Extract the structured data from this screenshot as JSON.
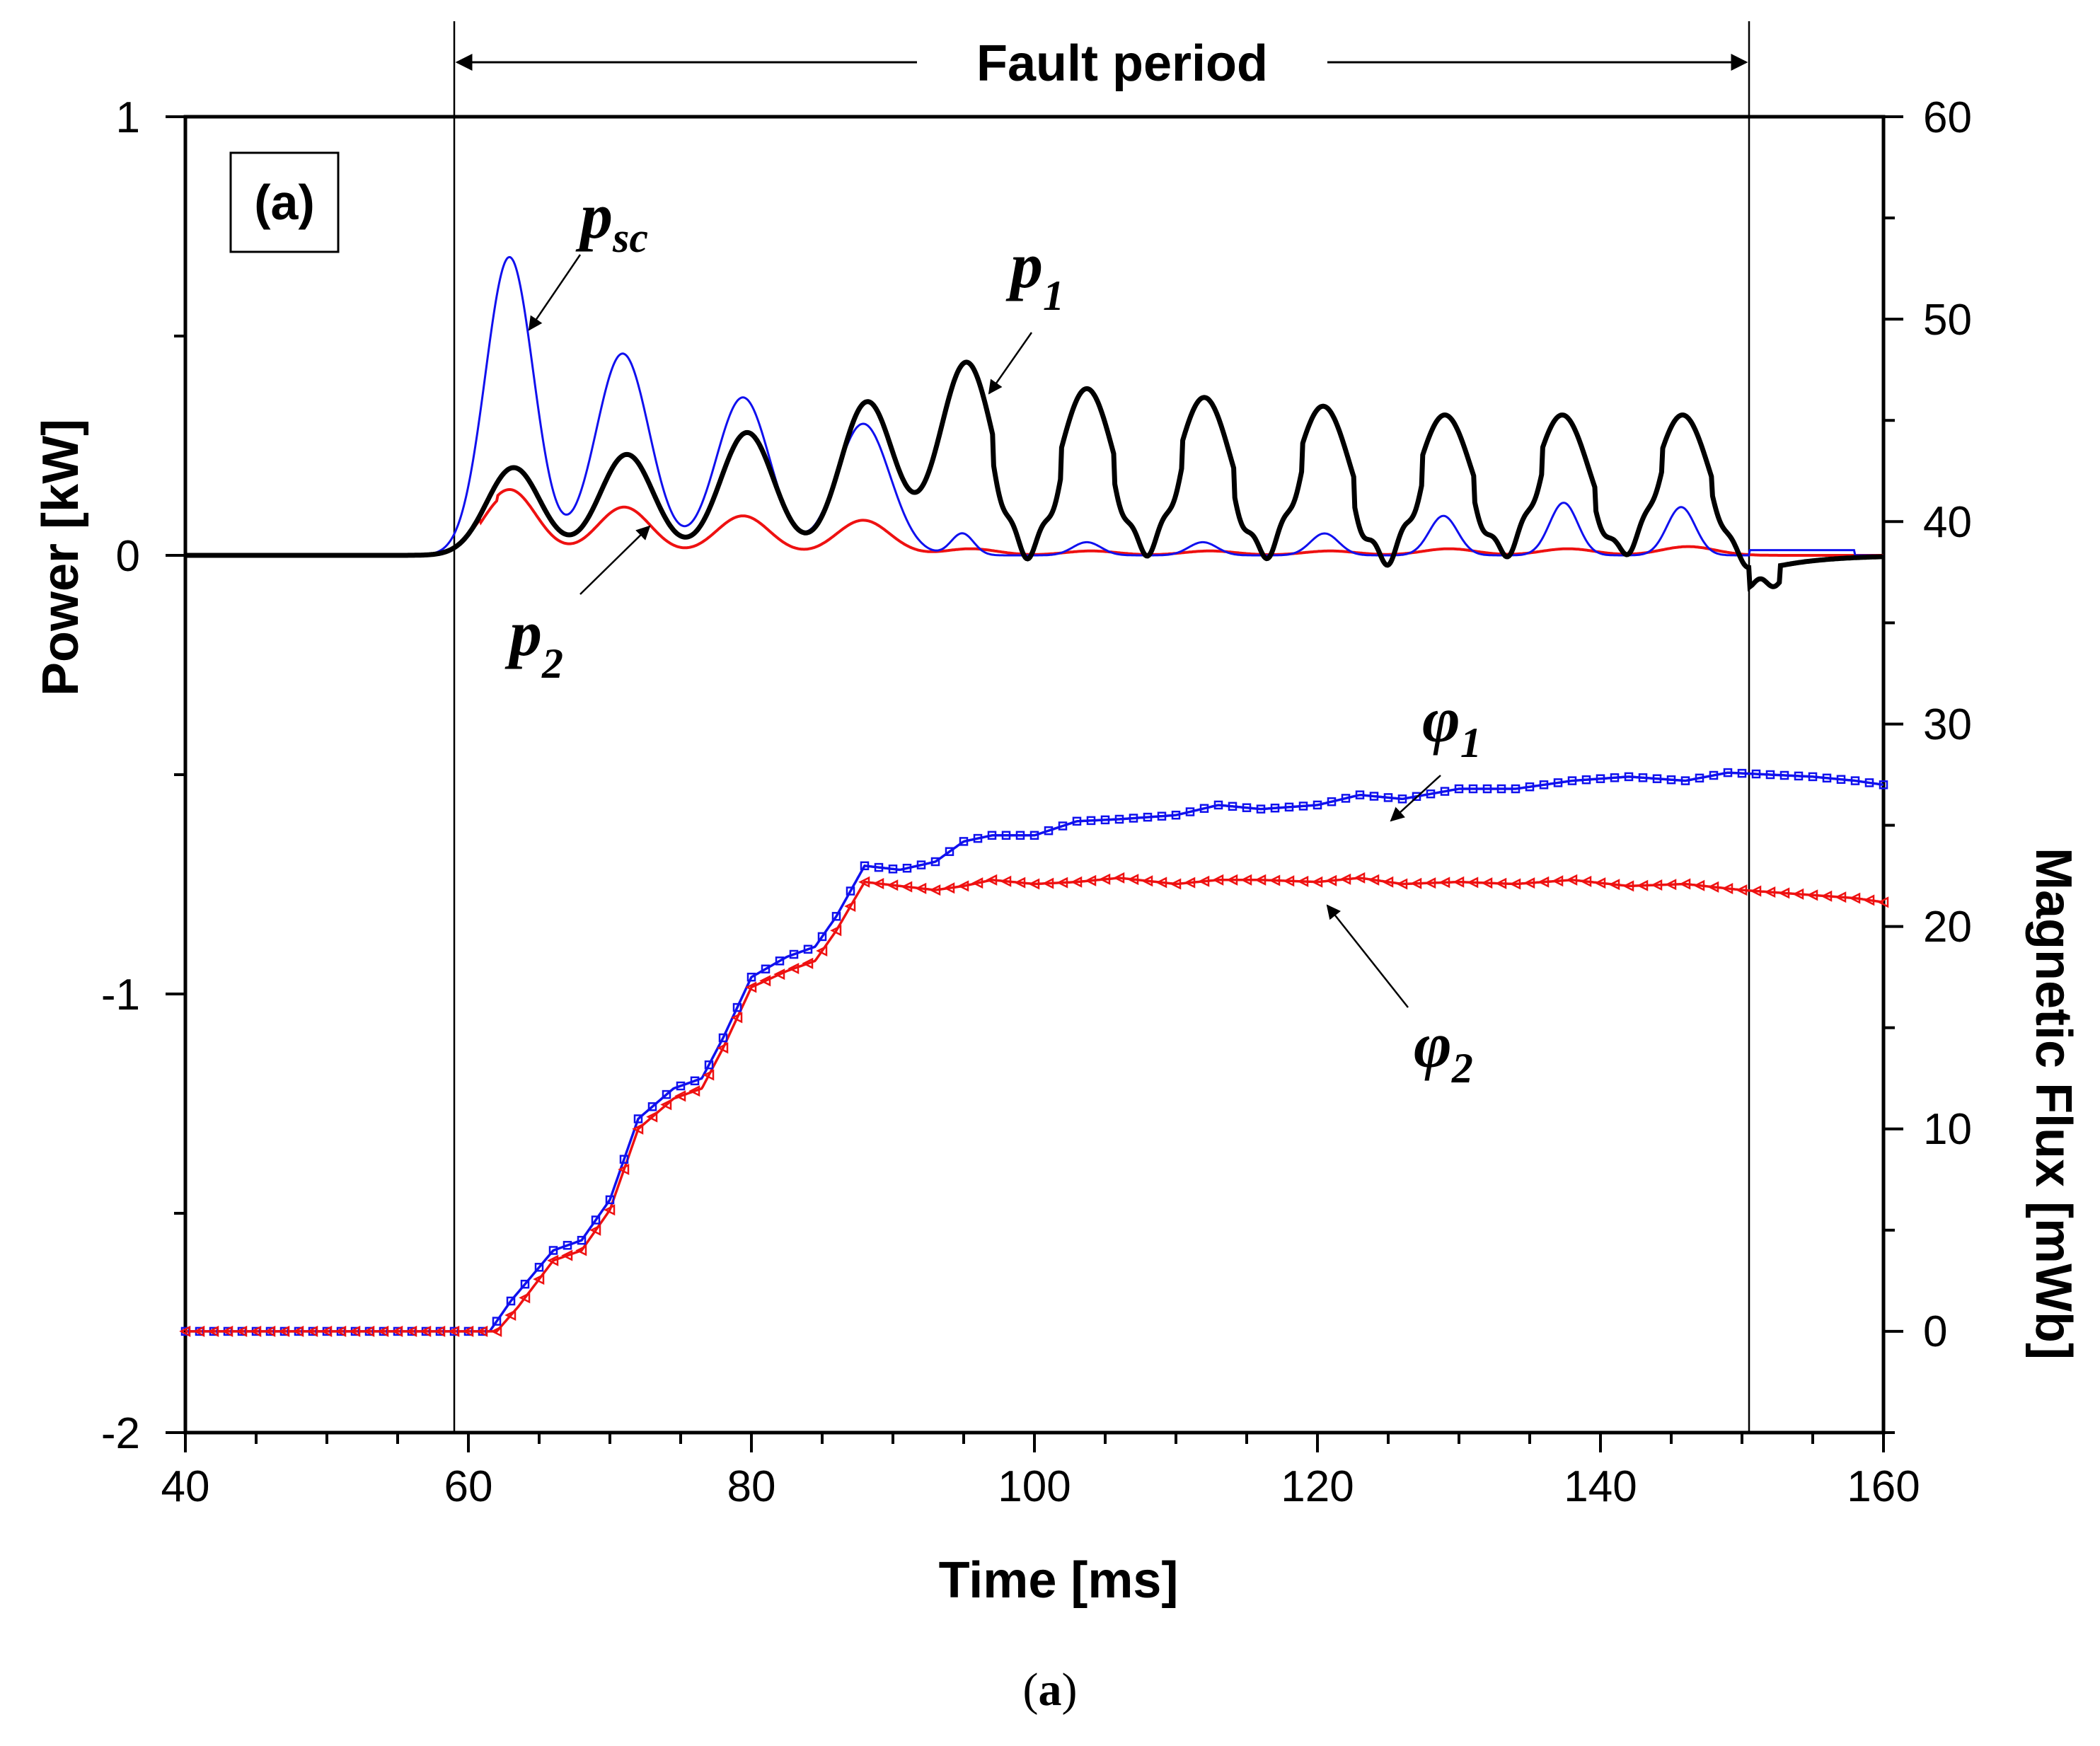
{
  "chart_data": {
    "type": "line",
    "panel_label": "(a)",
    "caption_open": "(",
    "caption_letter": "a",
    "caption_close": ")",
    "xlabel": "Time [ms]",
    "ylabel_left": "Power [kW]",
    "ylabel_right": "Magnetic Flux [mWb]",
    "xlim": [
      40,
      160
    ],
    "ylim_left": [
      -2,
      1
    ],
    "ylim_right": [
      -5,
      60
    ],
    "x_ticks": [
      "40",
      "60",
      "80",
      "100",
      "120",
      "140",
      "160"
    ],
    "y_left_ticks": [
      "1",
      "0",
      "-1",
      "-2"
    ],
    "y_right_ticks": [
      "60",
      "50",
      "40",
      "30",
      "20",
      "10",
      "0"
    ],
    "fault_period": {
      "label": "Fault period",
      "start": 59,
      "end": 150.5
    },
    "colors": {
      "psc": "#1010ee",
      "p1": "#000000",
      "p2": "#ee1111",
      "phi1": "#1010ee",
      "phi2": "#ee1111"
    },
    "labels": {
      "psc": {
        "main": "p",
        "sub": "sc"
      },
      "p1": {
        "main": "p",
        "sub": "1"
      },
      "p2": {
        "main": "p",
        "sub": "2"
      },
      "phi1": {
        "main": "φ",
        "sub": "1"
      },
      "phi2": {
        "main": "φ",
        "sub": "2"
      }
    },
    "series": [
      {
        "name": "psc",
        "axis": "left",
        "unit": "kW",
        "peak_times": [
          62.9,
          70.9,
          79.4,
          87.9,
          94.9,
          103.7,
          111.9,
          120.5,
          128.9,
          137.4,
          145.7
        ],
        "peak_values": [
          0.68,
          0.46,
          0.36,
          0.3,
          0.05,
          0.03,
          0.03,
          0.05,
          0.09,
          0.12,
          0.11
        ],
        "peak_widths": [
          1.7,
          1.9,
          1.9,
          1.9,
          0.8,
          1.0,
          1.0,
          1.0,
          1.0,
          1.0,
          1.0
        ]
      },
      {
        "name": "p1",
        "axis": "left",
        "unit": "kW",
        "peak_times": [
          63.2,
          71.2,
          79.7,
          88.2,
          95.2,
          103.7,
          112.0,
          120.4,
          129.0,
          137.3,
          145.8
        ],
        "peak_values": [
          0.2,
          0.23,
          0.28,
          0.35,
          0.44,
          0.38,
          0.36,
          0.34,
          0.32,
          0.32,
          0.32
        ],
        "trough_times": [
          99.5,
          108.0,
          116.5,
          125.0,
          133.5,
          142.0,
          150.3
        ],
        "trough_values": [
          -0.075,
          -0.07,
          -0.07,
          -0.075,
          -0.065,
          -0.055,
          -0.045
        ]
      },
      {
        "name": "p2",
        "axis": "left",
        "unit": "kW",
        "peak_times": [
          62.9,
          71.0,
          79.4,
          87.9,
          95.5,
          104.0,
          112.4,
          120.9,
          129.3,
          137.7,
          146.2
        ],
        "peak_values": [
          0.15,
          0.11,
          0.09,
          0.08,
          0.015,
          0.01,
          0.01,
          0.01,
          0.015,
          0.015,
          0.02
        ]
      },
      {
        "name": "phi1",
        "axis": "right",
        "unit": "mWb",
        "x": [
          40,
          61.5,
          63,
          66,
          68,
          70,
          72,
          74.5,
          76.5,
          78,
          80,
          82.5,
          84.5,
          86,
          88,
          90.5,
          93,
          95,
          97,
          100,
          103,
          106,
          110,
          113,
          116,
          120,
          123,
          126,
          130,
          134,
          138,
          142,
          146,
          149,
          152,
          155,
          158,
          160
        ],
        "y": [
          0,
          0,
          1.5,
          4.0,
          4.5,
          6.5,
          10.5,
          12.0,
          12.5,
          14.5,
          17.5,
          18.5,
          19.0,
          20.5,
          23.0,
          22.8,
          23.2,
          24.2,
          24.5,
          24.5,
          25.2,
          25.3,
          25.5,
          26.0,
          25.8,
          26.0,
          26.5,
          26.3,
          26.8,
          26.8,
          27.2,
          27.4,
          27.2,
          27.6,
          27.5,
          27.4,
          27.2,
          27.0
        ]
      },
      {
        "name": "phi2",
        "axis": "right",
        "unit": "mWb",
        "x": [
          40,
          62,
          63.5,
          66,
          68,
          70,
          72,
          74.5,
          76.5,
          78,
          80,
          82.5,
          84.5,
          86,
          88,
          90.5,
          93,
          95,
          97,
          100,
          103,
          106,
          110,
          113,
          116,
          120,
          123,
          126,
          130,
          134,
          138,
          142,
          146,
          150,
          154,
          158,
          160
        ],
        "y": [
          0,
          0,
          1.2,
          3.5,
          4.0,
          6.0,
          10.0,
          11.5,
          12.0,
          14.0,
          17.0,
          17.8,
          18.3,
          19.8,
          22.2,
          22.0,
          21.8,
          22.0,
          22.3,
          22.1,
          22.2,
          22.4,
          22.1,
          22.3,
          22.3,
          22.2,
          22.4,
          22.1,
          22.2,
          22.1,
          22.3,
          22.0,
          22.1,
          21.8,
          21.6,
          21.4,
          21.2
        ]
      }
    ]
  }
}
